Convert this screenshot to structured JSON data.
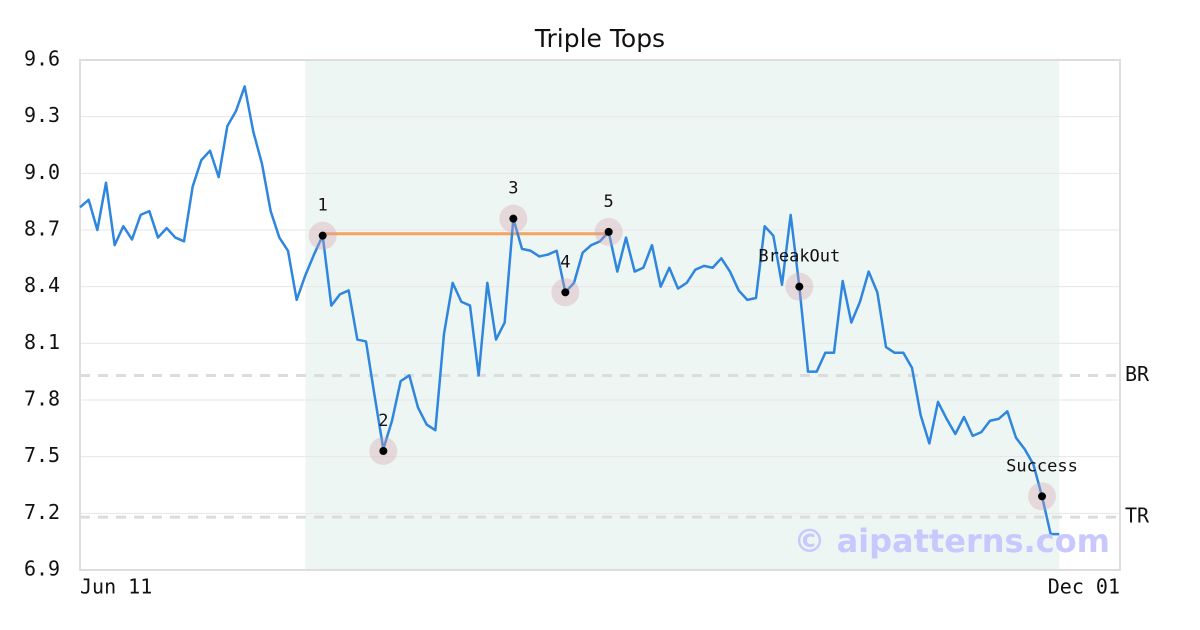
{
  "chart_data": {
    "type": "line",
    "title": "Triple Tops",
    "series": [
      {
        "color": "#2e86de",
        "values": [
          8.82,
          8.86,
          8.7,
          8.95,
          8.62,
          8.72,
          8.65,
          8.78,
          8.8,
          8.66,
          8.71,
          8.66,
          8.64,
          8.93,
          9.07,
          9.12,
          8.98,
          9.25,
          9.33,
          9.46,
          9.22,
          9.05,
          8.8,
          8.66,
          8.59,
          8.33,
          8.46,
          8.57,
          8.67,
          8.3,
          8.36,
          8.38,
          8.12,
          8.11,
          7.82,
          7.54,
          7.69,
          7.9,
          7.93,
          7.76,
          7.67,
          7.64,
          8.15,
          8.42,
          8.32,
          8.3,
          7.93,
          8.42,
          8.12,
          8.21,
          8.76,
          8.6,
          8.59,
          8.56,
          8.57,
          8.59,
          8.37,
          8.42,
          8.58,
          8.62,
          8.64,
          8.69,
          8.48,
          8.66,
          8.48,
          8.5,
          8.62,
          8.4,
          8.5,
          8.39,
          8.42,
          8.49,
          8.51,
          8.5,
          8.55,
          8.48,
          8.38,
          8.33,
          8.34,
          8.72,
          8.67,
          8.41,
          8.78,
          8.4,
          7.95,
          7.95,
          8.05,
          8.05,
          8.43,
          8.21,
          8.32,
          8.48,
          8.37,
          8.08,
          8.05,
          8.05,
          7.97,
          7.72,
          7.57,
          7.79,
          7.7,
          7.62,
          7.71,
          7.61,
          7.63,
          7.69,
          7.7,
          7.74,
          7.6,
          7.54,
          7.46,
          7.29,
          7.09,
          7.09
        ]
      }
    ],
    "xlim": [
      0,
      120
    ],
    "xticks": [
      {
        "value": 0,
        "label": "Jun 11"
      },
      {
        "value": 120,
        "label": "Dec 01"
      }
    ],
    "ylim": [
      6.9,
      9.6
    ],
    "yticks": [
      6.9,
      7.2,
      7.5,
      7.8,
      8.1,
      8.4,
      8.7,
      {
        "value": 9,
        "label": "9.0"
      },
      9.3,
      9.6
    ],
    "grid": true,
    "highlight": {
      "x": [
        26,
        113
      ],
      "color": "#eef6f3"
    },
    "resistance": {
      "x": [
        28,
        61
      ],
      "y": 8.68,
      "color": "#f4a460"
    },
    "levels": [
      {
        "label": "BR",
        "value": 7.93
      },
      {
        "label": "TR",
        "value": 7.18
      }
    ],
    "annotations": [
      {
        "label": "1",
        "x": 28,
        "y": 8.67
      },
      {
        "label": "2",
        "x": 35,
        "y": 7.53
      },
      {
        "label": "3",
        "x": 50,
        "y": 8.76
      },
      {
        "label": "4",
        "x": 56,
        "y": 8.37
      },
      {
        "label": "5",
        "x": 61,
        "y": 8.69
      },
      {
        "label": "BreakOut",
        "x": 83,
        "y": 8.4
      },
      {
        "label": "Success",
        "x": 111,
        "y": 7.29
      }
    ],
    "watermark": "© aipatterns.com"
  }
}
